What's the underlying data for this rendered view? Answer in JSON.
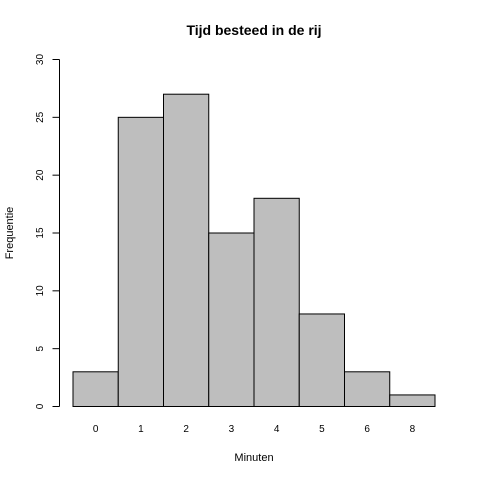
{
  "chart_data": {
    "type": "bar",
    "title": "Tijd besteed in de rij",
    "xlabel": "Minuten",
    "ylabel": "Frequentie",
    "categories": [
      "0",
      "1",
      "2",
      "3",
      "4",
      "5",
      "6",
      "8"
    ],
    "values": [
      3,
      25,
      27,
      15,
      18,
      8,
      3,
      1
    ],
    "ylim": [
      0,
      30
    ],
    "yticks": [
      "0",
      "5",
      "10",
      "15",
      "20",
      "25",
      "30"
    ],
    "bar_color": "#bebebe",
    "grid": false
  }
}
